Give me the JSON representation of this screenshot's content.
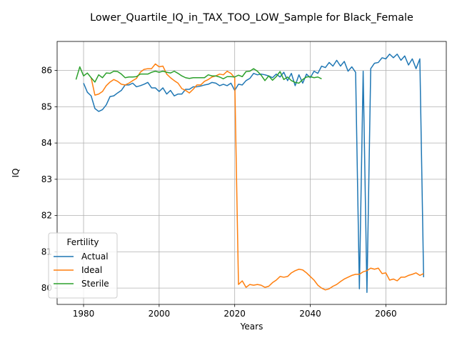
{
  "chart_data": {
    "type": "line",
    "title": "Lower_Quartile_IQ_in_TAX_TOO_LOW_Sample for Black_Female",
    "xlabel": "Years",
    "ylabel": "IQ",
    "xlim": [
      1973,
      2076
    ],
    "ylim": [
      79.55,
      86.8
    ],
    "xticks": [
      1980,
      2000,
      2020,
      2040,
      2060
    ],
    "yticks": [
      80,
      81,
      82,
      83,
      84,
      85,
      86
    ],
    "grid": true,
    "legend": {
      "title": "Fertility",
      "position": "lower-left"
    },
    "series": [
      {
        "name": "Actual",
        "color": "#1f77b4",
        "x": [
          1980,
          1981,
          1982,
          1983,
          1984,
          1985,
          1986,
          1987,
          1988,
          1989,
          1990,
          1991,
          1992,
          1993,
          1994,
          1995,
          1996,
          1997,
          1998,
          1999,
          2000,
          2001,
          2002,
          2003,
          2004,
          2005,
          2006,
          2007,
          2008,
          2009,
          2010,
          2011,
          2012,
          2013,
          2014,
          2015,
          2016,
          2017,
          2018,
          2019,
          2020,
          2021,
          2022,
          2023,
          2024,
          2025,
          2026,
          2027,
          2028,
          2029,
          2030,
          2031,
          2032,
          2033,
          2034,
          2035,
          2036,
          2037,
          2038,
          2039,
          2040,
          2041,
          2042,
          2043,
          2044,
          2045,
          2046,
          2047,
          2048,
          2049,
          2050,
          2051,
          2052,
          2053,
          2054,
          2055,
          2056,
          2057,
          2058,
          2059,
          2060,
          2061,
          2062,
          2063,
          2064,
          2065,
          2066,
          2067,
          2068,
          2069,
          2070
        ],
        "values": [
          85.65,
          85.4,
          85.3,
          84.95,
          84.87,
          84.92,
          85.05,
          85.28,
          85.3,
          85.38,
          85.45,
          85.6,
          85.6,
          85.65,
          85.55,
          85.58,
          85.62,
          85.67,
          85.52,
          85.52,
          85.42,
          85.52,
          85.35,
          85.45,
          85.3,
          85.35,
          85.35,
          85.48,
          85.48,
          85.55,
          85.55,
          85.57,
          85.6,
          85.62,
          85.67,
          85.65,
          85.58,
          85.62,
          85.58,
          85.65,
          85.45,
          85.62,
          85.6,
          85.72,
          85.78,
          85.92,
          85.88,
          85.9,
          85.88,
          85.85,
          85.8,
          85.9,
          85.82,
          85.95,
          85.72,
          85.92,
          85.58,
          85.88,
          85.65,
          85.9,
          85.8,
          85.98,
          85.92,
          86.12,
          86.08,
          86.22,
          86.12,
          86.28,
          86.12,
          86.25,
          85.98,
          86.1,
          85.95,
          79.98,
          85.98,
          79.88,
          86.05,
          86.2,
          86.22,
          86.35,
          86.32,
          86.45,
          86.35,
          86.45,
          86.28,
          86.4,
          86.15,
          86.32,
          86.05,
          86.32,
          80.3
        ]
      },
      {
        "name": "Ideal",
        "color": "#ff7f0e",
        "x": [
          1982,
          1983,
          1984,
          1985,
          1986,
          1987,
          1988,
          1989,
          1990,
          1991,
          1992,
          1993,
          1994,
          1995,
          1996,
          1997,
          1998,
          1999,
          2000,
          2001,
          2002,
          2003,
          2004,
          2005,
          2006,
          2007,
          2008,
          2009,
          2010,
          2011,
          2012,
          2013,
          2014,
          2015,
          2016,
          2017,
          2018,
          2019,
          2020,
          2021,
          2022,
          2023,
          2024,
          2025,
          2026,
          2027,
          2028,
          2029,
          2030,
          2031,
          2032,
          2033,
          2034,
          2035,
          2036,
          2037,
          2038,
          2039,
          2040,
          2041,
          2042,
          2043,
          2044,
          2045,
          2046,
          2047,
          2048,
          2049,
          2050,
          2051,
          2052,
          2053,
          2054,
          2055,
          2056,
          2057,
          2058,
          2059,
          2060,
          2061,
          2062,
          2063,
          2064,
          2065,
          2066,
          2067,
          2068,
          2069,
          2070
        ],
        "values": [
          85.8,
          85.32,
          85.35,
          85.42,
          85.58,
          85.68,
          85.75,
          85.7,
          85.62,
          85.6,
          85.65,
          85.72,
          85.78,
          85.95,
          86.03,
          86.05,
          86.05,
          86.18,
          86.1,
          86.12,
          85.9,
          85.8,
          85.72,
          85.65,
          85.5,
          85.45,
          85.38,
          85.48,
          85.6,
          85.6,
          85.7,
          85.75,
          85.82,
          85.85,
          85.9,
          85.88,
          85.98,
          85.92,
          85.8,
          80.1,
          80.2,
          80.02,
          80.1,
          80.08,
          80.1,
          80.08,
          80.02,
          80.05,
          80.15,
          80.22,
          80.32,
          80.3,
          80.32,
          80.42,
          80.48,
          80.52,
          80.5,
          80.42,
          80.32,
          80.22,
          80.08,
          80.0,
          79.95,
          79.98,
          80.05,
          80.1,
          80.18,
          80.25,
          80.3,
          80.35,
          80.38,
          80.38,
          80.45,
          80.48,
          80.55,
          80.52,
          80.55,
          80.4,
          80.42,
          80.22,
          80.25,
          80.2,
          80.3,
          80.3,
          80.35,
          80.38,
          80.42,
          80.35,
          80.4
        ]
      },
      {
        "name": "Sterile",
        "color": "#2ca02c",
        "x": [
          1978,
          1979,
          1980,
          1981,
          1982,
          1983,
          1984,
          1985,
          1986,
          1987,
          1988,
          1989,
          1990,
          1991,
          1992,
          1993,
          1994,
          1995,
          1996,
          1997,
          1998,
          1999,
          2000,
          2001,
          2002,
          2003,
          2004,
          2005,
          2006,
          2007,
          2008,
          2009,
          2010,
          2011,
          2012,
          2013,
          2014,
          2015,
          2016,
          2017,
          2018,
          2019,
          2020,
          2021,
          2022,
          2023,
          2024,
          2025,
          2026,
          2027,
          2028,
          2029,
          2030,
          2031,
          2032,
          2033,
          2034,
          2035,
          2036,
          2037,
          2038,
          2039,
          2040,
          2041,
          2042,
          2043
        ],
        "values": [
          85.75,
          86.1,
          85.85,
          85.93,
          85.8,
          85.68,
          85.88,
          85.8,
          85.93,
          85.92,
          85.98,
          85.97,
          85.9,
          85.8,
          85.82,
          85.82,
          85.83,
          85.9,
          85.9,
          85.9,
          85.95,
          85.98,
          85.95,
          85.98,
          85.95,
          85.93,
          85.98,
          85.92,
          85.85,
          85.8,
          85.78,
          85.8,
          85.8,
          85.8,
          85.8,
          85.88,
          85.85,
          85.85,
          85.82,
          85.77,
          85.83,
          85.83,
          85.82,
          85.87,
          85.83,
          85.97,
          85.98,
          86.05,
          85.98,
          85.87,
          85.72,
          85.85,
          85.73,
          85.83,
          85.97,
          85.75,
          85.82,
          85.72,
          85.67,
          85.65,
          85.75,
          85.82,
          85.83,
          85.8,
          85.82,
          85.77
        ]
      }
    ]
  }
}
